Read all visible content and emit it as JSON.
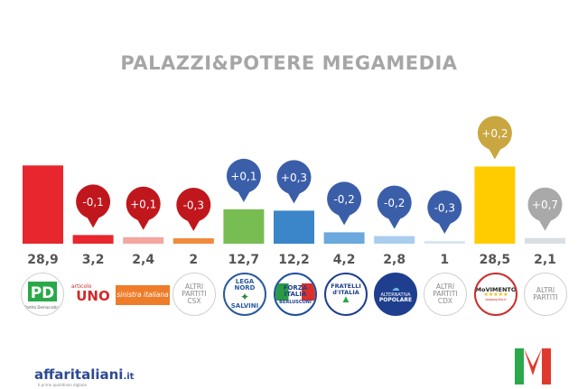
{
  "header": {
    "title": "PALAZZI&POTERE MEGAMEDIA"
  },
  "chart_data": {
    "type": "bar",
    "title": "PALAZZI&POTERE MEGAMEDIA",
    "categories": [
      "PD",
      "Articolo UNO",
      "Sinistra Italiana",
      "ALTRI PARTITI CSX",
      "Lega Nord",
      "Forza Italia",
      "Fratelli d'Italia",
      "Alternativa Popolare",
      "ALTRI PARTITI CDX",
      "MoVimento 5 Stelle",
      "ALTRI PARTITI"
    ],
    "values": [
      28.9,
      3.2,
      2.4,
      2,
      12.7,
      12.2,
      4.2,
      2.8,
      1,
      28.5,
      2.1
    ],
    "value_labels": [
      "28,9",
      "3,2",
      "2,4",
      "2",
      "12,7",
      "12,2",
      "4,2",
      "2,8",
      "1",
      "28,5",
      "2,1"
    ],
    "changes": [
      null,
      "-0,1",
      "+0,1",
      "-0,3",
      "+0,1",
      "+0,3",
      "-0,2",
      "-0,2",
      "-0,3",
      "+0,2",
      "+0,7"
    ],
    "change_values": [
      null,
      -0.1,
      0.1,
      -0.3,
      0.1,
      0.3,
      -0.2,
      -0.2,
      -0.3,
      0.2,
      0.7
    ],
    "bar_colors": [
      "#e8262d",
      "#e8262d",
      "#f4a6a0",
      "#f08a3c",
      "#77bd52",
      "#3a86c8",
      "#6aa8dd",
      "#a9cdec",
      "#d7e6f3",
      "#ffcc00",
      "#d9dee4"
    ],
    "bubble_colors": [
      null,
      "#c0171d",
      "#c0171d",
      "#c0171d",
      "#3b5ea9",
      "#3b5ea9",
      "#3b5ea9",
      "#3b5ea9",
      "#3b5ea9",
      "#c9a640",
      "#a9a9a9"
    ],
    "ylim": [
      0,
      30
    ],
    "legend": "none",
    "grid": false
  },
  "logos": {
    "pd": {
      "icon": "pd-logo",
      "text": "PD",
      "subtext": "Partito Democratico"
    },
    "uno": {
      "icon": "articolo-uno-logo",
      "small": "articolo",
      "text": "UNO"
    },
    "si": {
      "icon": "sinistra-italiana-logo",
      "text": "sinistra italiana"
    },
    "altri_csx": {
      "line1": "ALTRI",
      "line2": "PARTITI",
      "line3": "CSX"
    },
    "lega": {
      "icon": "lega-nord-logo",
      "line1": "LEGA NORD",
      "line2": "SALVINI"
    },
    "fi": {
      "icon": "forza-italia-logo",
      "line1": "FORZA",
      "line2": "ITALIA",
      "line3": "BERLUSCONI"
    },
    "fdi": {
      "icon": "fratelli-ditalia-logo",
      "line1": "FRATELLI",
      "line2": "d'ITALIA"
    },
    "ap": {
      "icon": "alternativa-popolare-logo",
      "line1": "ALTERNATIVA",
      "line2": "POPOLARE"
    },
    "altri_cdx": {
      "line1": "ALTRI",
      "line2": "PARTITI",
      "line3": "CDX"
    },
    "m5s": {
      "icon": "movimento-5-stelle-logo",
      "text": "MoVIMENTO",
      "stars": "★★★★★",
      "sub": "beppegrillo.it"
    },
    "altri": {
      "line1": "ALTRI",
      "line2": "PARTITI"
    }
  },
  "footer": {
    "brand": "affaritaliani",
    "dot_it": ".it",
    "tagline": "Il primo quotidiano digitale"
  },
  "brand_colors": {
    "green": "#2aa84a",
    "red": "#e03a2f",
    "grey": "#a6a6a6"
  }
}
